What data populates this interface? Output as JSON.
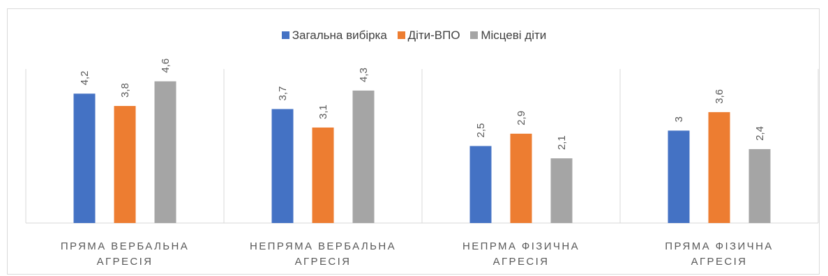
{
  "chart_data": {
    "type": "bar",
    "categories": [
      [
        "ПРЯМА ВЕРБАЛЬНА",
        "АГРЕСІЯ"
      ],
      [
        "НЕПРЯМА ВЕРБАЛЬНА",
        "АГРЕСІЯ"
      ],
      [
        "НЕПРМА ФІЗИЧНА",
        "АГРЕСІЯ"
      ],
      [
        "ПРЯМА ФІЗИЧНА",
        "АГРЕСІЯ"
      ]
    ],
    "series": [
      {
        "name": "Загальна вибірка",
        "color": "#4472c4",
        "values": [
          4.2,
          3.7,
          2.5,
          3.0
        ],
        "labels": [
          "4,2",
          "3,7",
          "2,5",
          "3"
        ]
      },
      {
        "name": "Діти-ВПО",
        "color": "#ed7d31",
        "values": [
          3.8,
          3.1,
          2.9,
          3.6
        ],
        "labels": [
          "3,8",
          "3,1",
          "2,9",
          "3,6"
        ]
      },
      {
        "name": "Місцеві діти",
        "color": "#a5a5a5",
        "values": [
          4.6,
          4.3,
          2.1,
          2.4
        ],
        "labels": [
          "4,6",
          "4,3",
          "2,1",
          "2,4"
        ]
      }
    ],
    "ylim": [
      0,
      5
    ],
    "legend_position": "top",
    "grid": false,
    "category_separators": true
  }
}
